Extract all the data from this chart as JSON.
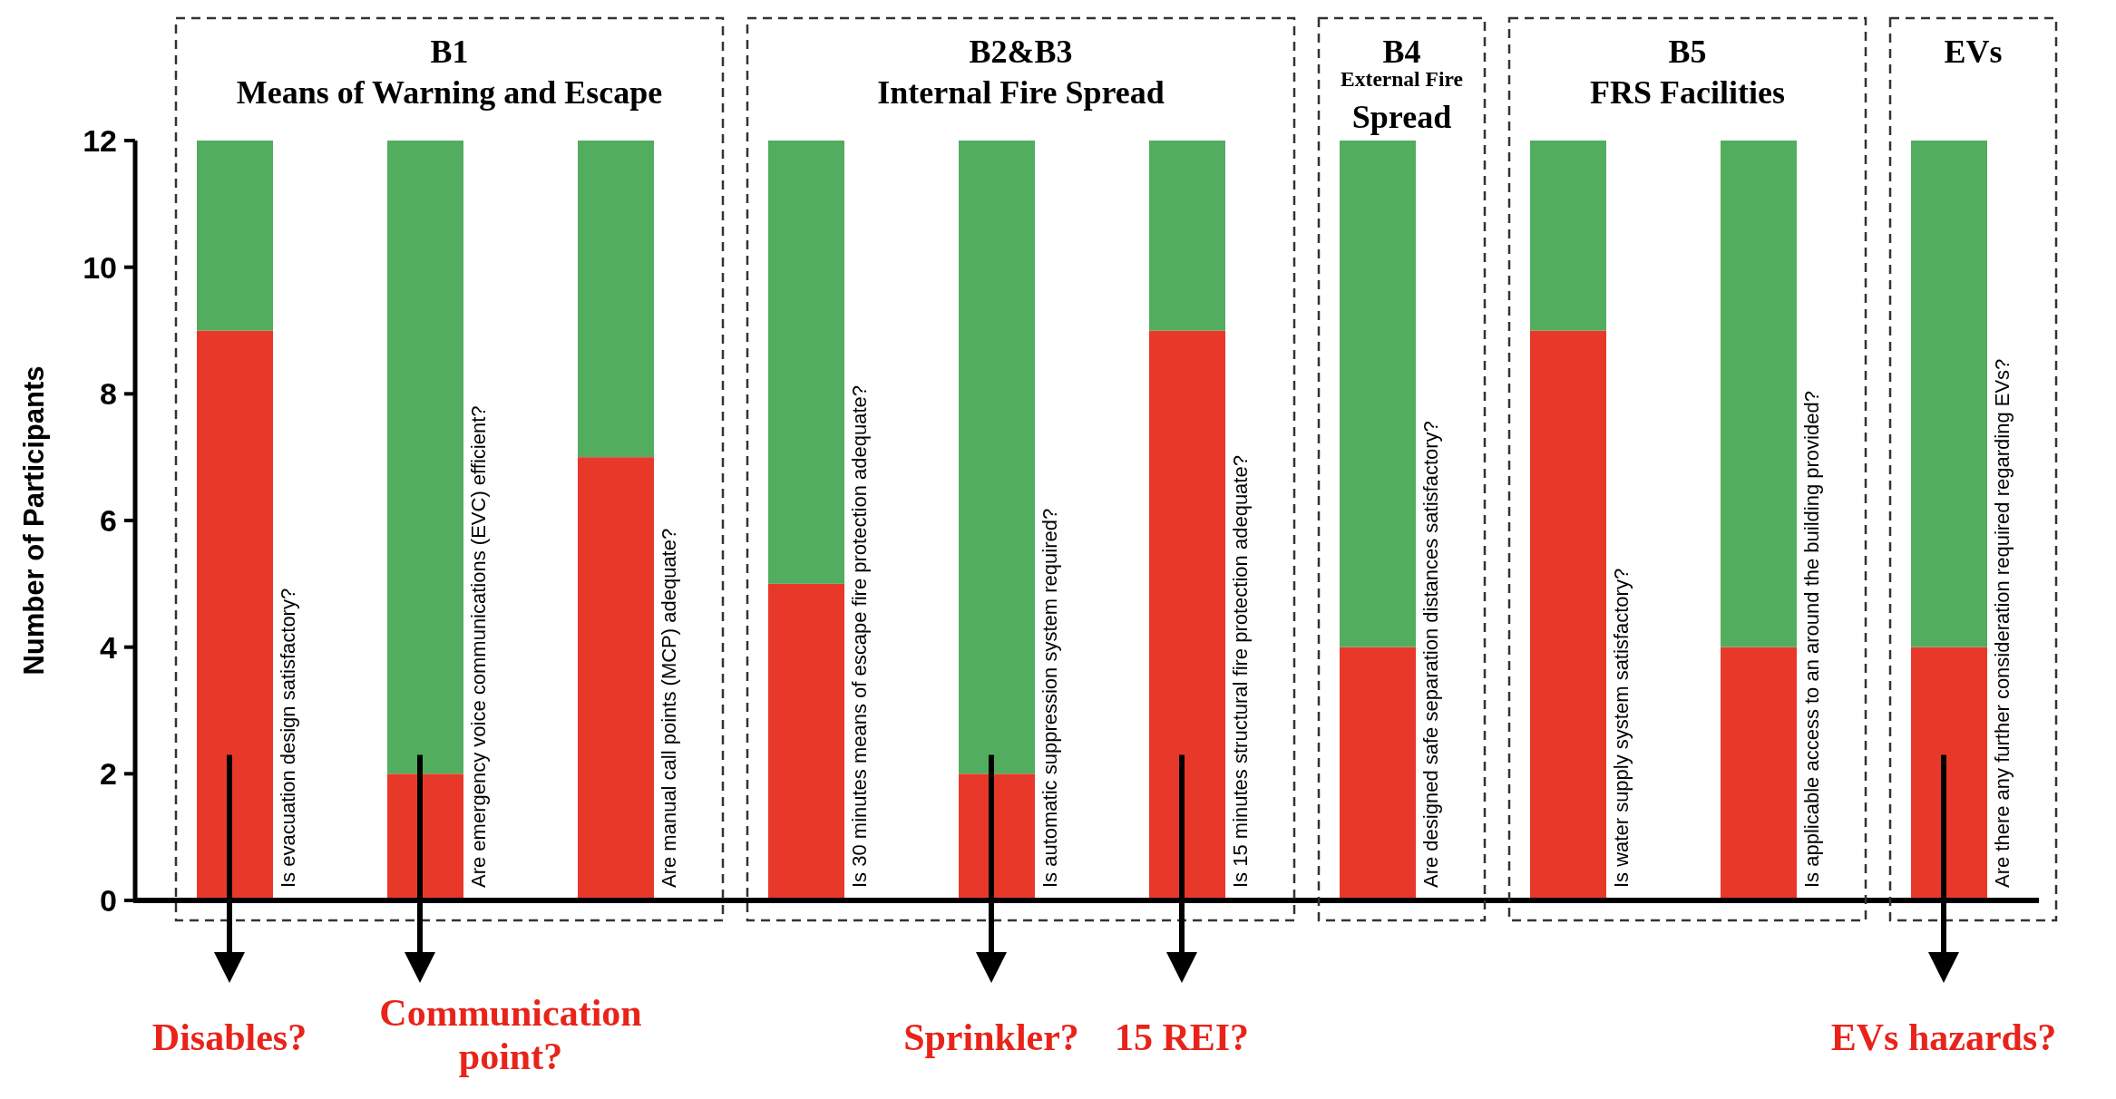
{
  "chart_data": {
    "type": "bar",
    "stacked": true,
    "ylabel": "Number of Participants",
    "ylim": [
      0,
      12
    ],
    "yticks": [
      0,
      2,
      4,
      6,
      8,
      10,
      12
    ],
    "categories": [
      "Is evacuation design satisfactory?",
      "Are emergency voice communications (EVC)  efficient?",
      "Are manual call points (MCP) adequate?",
      "Is 30 minutes means of escape fire protection adequate?",
      "Is automatic suppression system required?",
      "Is 15 minutes structural fire protection adequate?",
      "Are designed safe separation distances satisfactory?",
      "Is water supply system satisfactory?",
      "Is applicable access to an around the building provided?",
      "Are there any further consideration required regarding EVs?"
    ],
    "series": [
      {
        "color": "#e8382a",
        "values": [
          9,
          2,
          7,
          5,
          2,
          9,
          4,
          9,
          4,
          4
        ]
      },
      {
        "color": "#52ad5e",
        "values": [
          3,
          10,
          5,
          7,
          10,
          3,
          8,
          3,
          8,
          8
        ]
      }
    ],
    "annotations": [
      "B1\nMeans of Warning and Escape",
      "B2&B3\nInternal Fire Spread",
      "B4\nExternal Fire\nSpread",
      "B5\nFRS Facilities",
      "EVs",
      "Disables?",
      "Communication\npoint?",
      "Sprinkler?",
      "15 REI?",
      "EVs hazards?"
    ]
  }
}
